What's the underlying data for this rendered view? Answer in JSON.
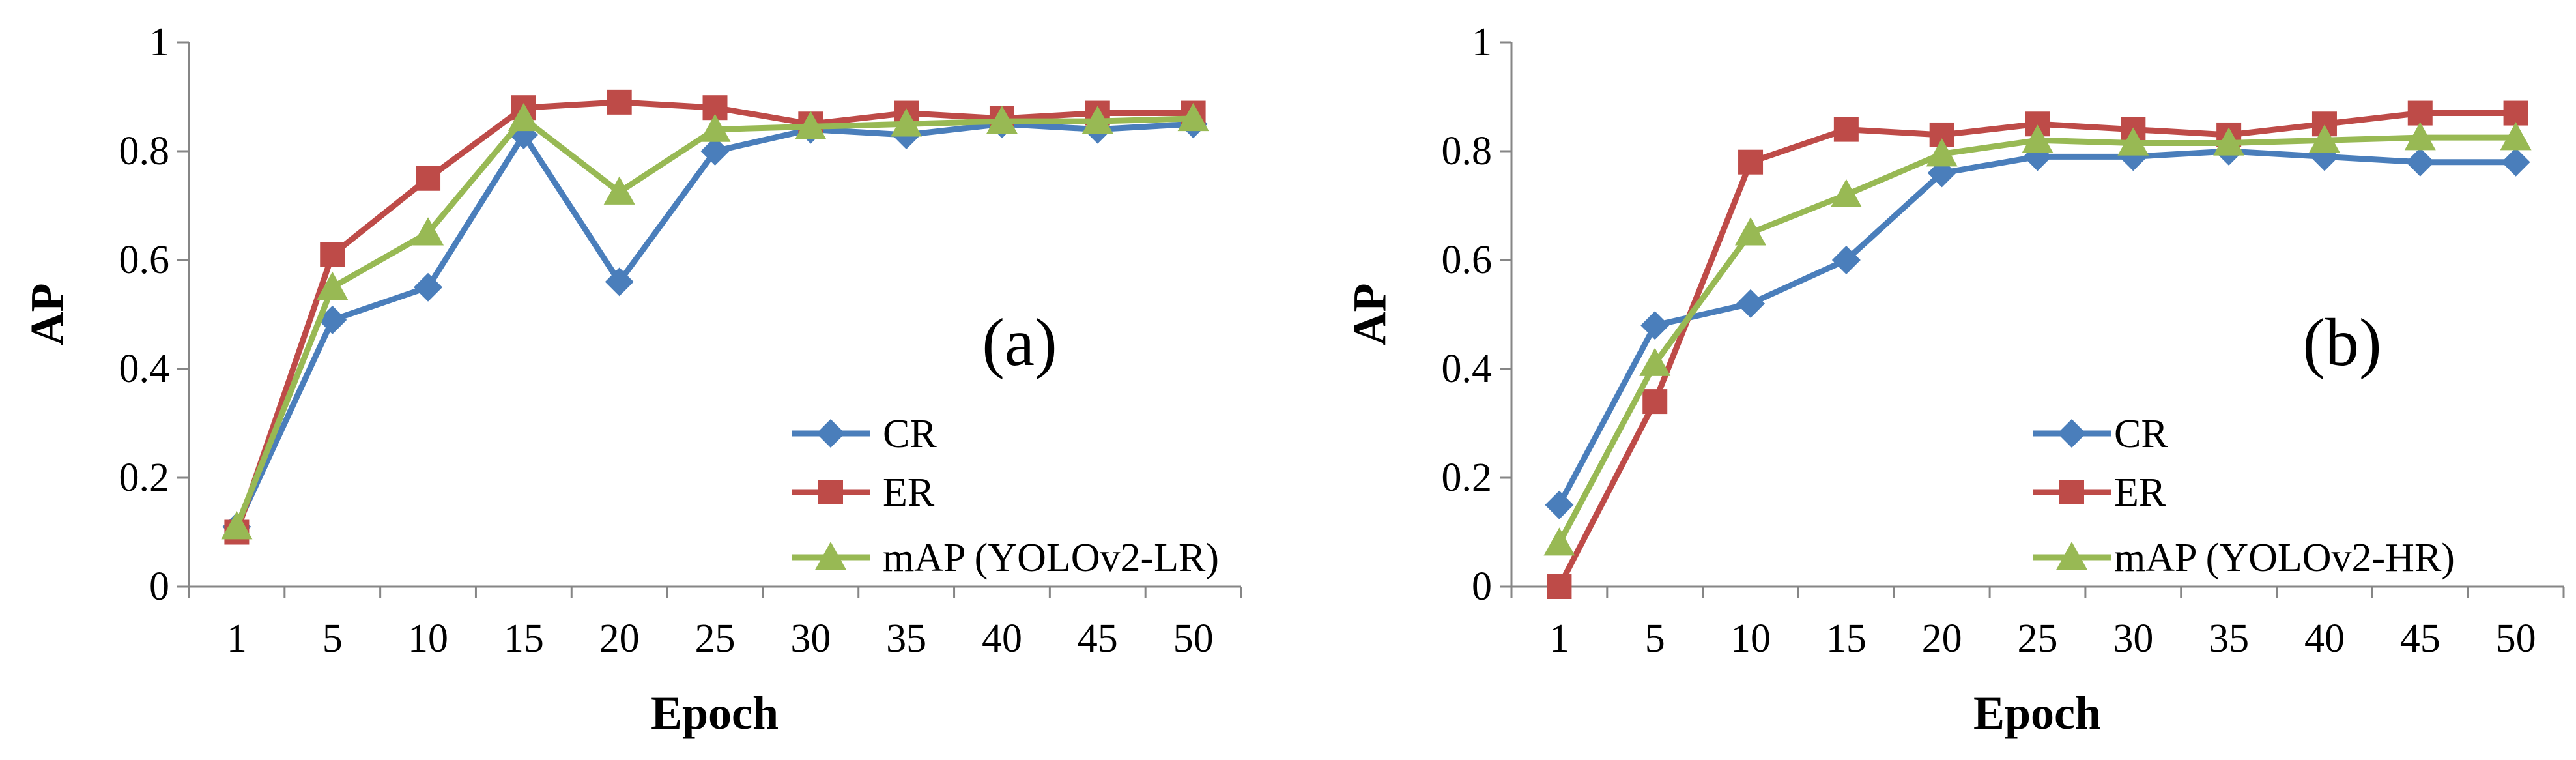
{
  "chart_data": [
    {
      "type": "line",
      "title": "",
      "annotation": "(a)",
      "xlabel": "Epoch",
      "ylabel": "AP",
      "ylim": [
        0,
        1
      ],
      "yticks": [
        "0",
        "0.2",
        "0.4",
        "0.6",
        "0.8",
        "1"
      ],
      "categories": [
        "1",
        "5",
        "10",
        "15",
        "20",
        "25",
        "30",
        "35",
        "40",
        "45",
        "50"
      ],
      "grid": false,
      "legend_position": "bottom-right",
      "series": [
        {
          "name": "CR",
          "marker": "diamond",
          "color": "#4a7ebb",
          "values": [
            0.11,
            0.49,
            0.55,
            0.83,
            0.56,
            0.8,
            0.84,
            0.83,
            0.85,
            0.84,
            0.85
          ]
        },
        {
          "name": "ER",
          "marker": "square",
          "color": "#be4b48",
          "values": [
            0.1,
            0.61,
            0.75,
            0.88,
            0.89,
            0.88,
            0.85,
            0.87,
            0.86,
            0.87,
            0.87
          ]
        },
        {
          "name": "mAP (YOLOv2-LR)",
          "marker": "triangle",
          "color": "#98b954",
          "values": [
            0.11,
            0.55,
            0.65,
            0.86,
            0.725,
            0.84,
            0.845,
            0.85,
            0.855,
            0.855,
            0.86
          ]
        }
      ]
    },
    {
      "type": "line",
      "title": "",
      "annotation": "(b)",
      "xlabel": "Epoch",
      "ylabel": "AP",
      "ylim": [
        0,
        1
      ],
      "yticks": [
        "0",
        "0.2",
        "0.4",
        "0.6",
        "0.8",
        "1"
      ],
      "categories": [
        "1",
        "5",
        "10",
        "15",
        "20",
        "25",
        "30",
        "35",
        "40",
        "45",
        "50"
      ],
      "grid": false,
      "legend_position": "bottom-right",
      "series": [
        {
          "name": "CR",
          "marker": "diamond",
          "color": "#4a7ebb",
          "values": [
            0.15,
            0.48,
            0.52,
            0.6,
            0.76,
            0.79,
            0.79,
            0.8,
            0.79,
            0.78,
            0.78
          ]
        },
        {
          "name": "ER",
          "marker": "square",
          "color": "#be4b48",
          "values": [
            0.0,
            0.34,
            0.78,
            0.84,
            0.83,
            0.85,
            0.84,
            0.83,
            0.85,
            0.87,
            0.87
          ]
        },
        {
          "name": "mAP (YOLOv2-HR)",
          "marker": "triangle",
          "color": "#98b954",
          "values": [
            0.08,
            0.41,
            0.65,
            0.72,
            0.795,
            0.82,
            0.815,
            0.815,
            0.82,
            0.825,
            0.825
          ]
        }
      ]
    }
  ]
}
